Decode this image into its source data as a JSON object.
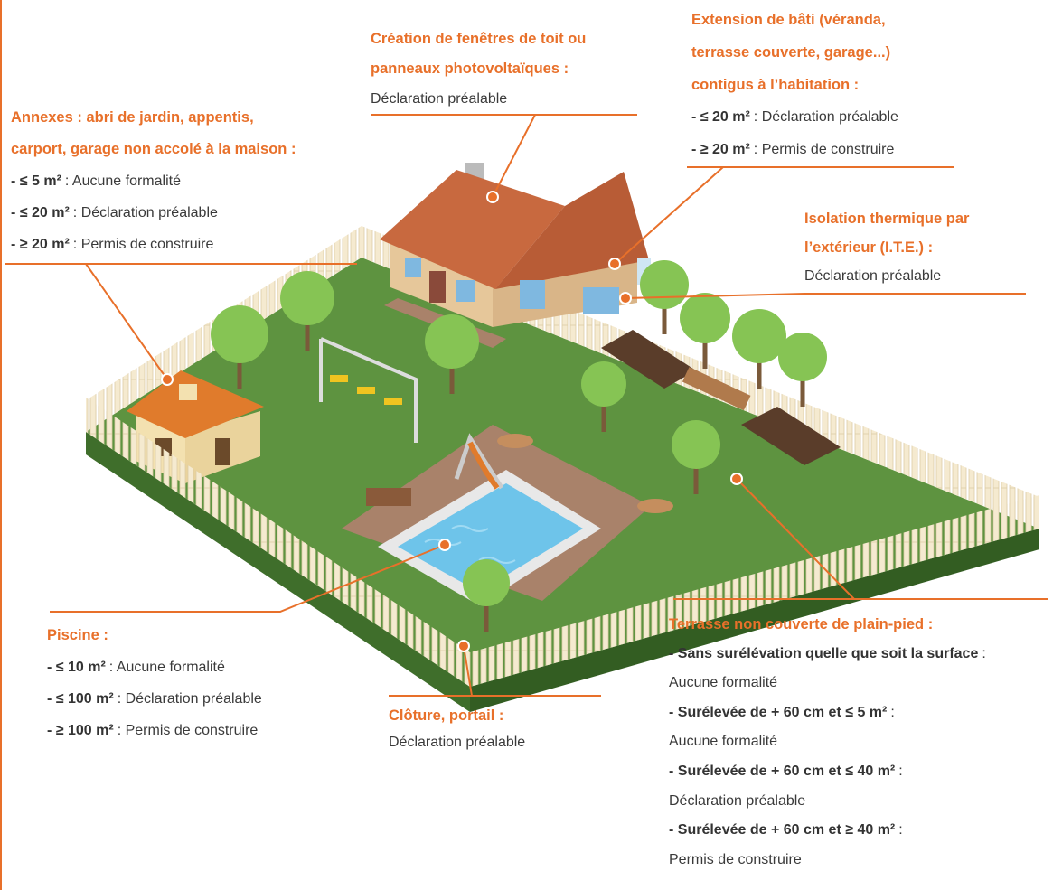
{
  "annotations": [
    {
      "title": [
        "Annexes : abri de jardin, appentis,",
        "carport, garage non accolé à la maison :"
      ],
      "items": [
        {
          "bold": "- ≤ 5 m²",
          "text": ": Aucune formalité"
        },
        {
          "bold": "- ≤ 20 m²",
          "text": ": Déclaration préalable"
        },
        {
          "bold": "- ≥ 20 m²",
          "text": ": Permis de construire"
        }
      ]
    },
    {
      "title": [
        "Création de fenêtres de toit ou",
        "panneaux photovoltaïques :"
      ],
      "text": "Déclaration préalable"
    },
    {
      "title": [
        "Extension de bâti (véranda,",
        "terrasse couverte, garage...)",
        "contigus à l’habitation :"
      ],
      "items": [
        {
          "bold": "- ≤ 20 m²",
          "text": ": Déclaration préalable"
        },
        {
          "bold": "- ≥ 20 m²",
          "text": ": Permis de construire"
        }
      ]
    },
    {
      "title": [
        "Isolation thermique par",
        "l’extérieur (I.T.E.) :"
      ],
      "text": "Déclaration préalable"
    },
    {
      "title": [
        "Piscine :"
      ],
      "items": [
        {
          "bold": "- ≤ 10 m²",
          "text": ": Aucune formalité"
        },
        {
          "bold": "- ≤ 100 m²",
          "text": ": Déclaration préalable"
        },
        {
          "bold": "- ≥ 100 m²",
          "text": ": Permis de construire"
        }
      ]
    },
    {
      "title": [
        "Clôture, portail :"
      ],
      "text": "Déclaration préalable"
    },
    {
      "title": [
        "Terrasse non couverte de plain-pied :"
      ],
      "items": [
        {
          "bold": "- Sans surélévation quelle que soit la surface",
          "colon": ":",
          "text": "Aucune formalité"
        },
        {
          "bold": "- Surélevée de + 60 cm et ≤ 5 m²",
          "colon": ":",
          "text": "Aucune formalité"
        },
        {
          "bold": "- Surélevée de + 60 cm et ≤ 40 m²",
          "colon": ":",
          "text": "Déclaration préalable"
        },
        {
          "bold": "- Surélevée de + 60 cm et ≥ 40 m²",
          "colon": ":",
          "text": "Permis de construire"
        }
      ]
    }
  ]
}
